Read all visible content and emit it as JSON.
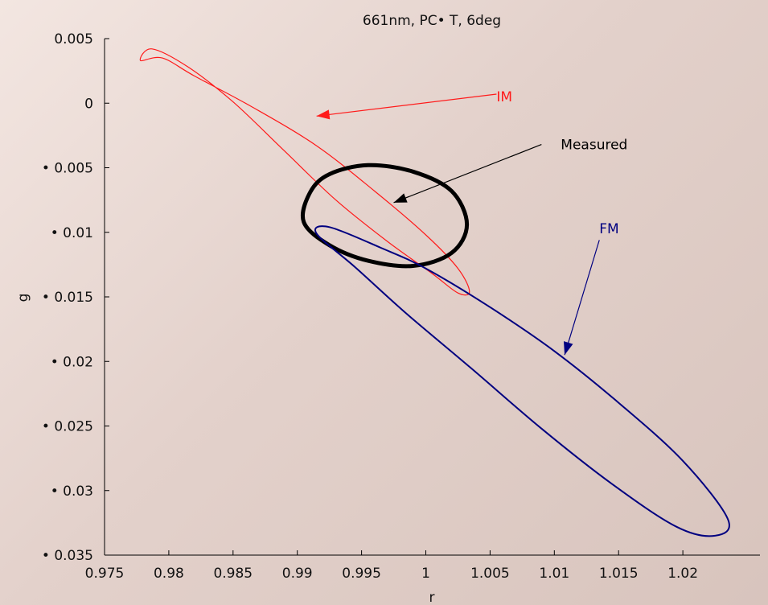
{
  "chart_data": {
    "type": "line",
    "title": "661nm, PC• T, 6deg",
    "xlabel": "r",
    "ylabel": "g",
    "xlim": [
      0.975,
      1.026
    ],
    "ylim": [
      -0.035,
      0.005
    ],
    "grid": false,
    "x_ticks": [
      0.975,
      0.98,
      0.985,
      0.99,
      0.995,
      1,
      1.005,
      1.01,
      1.015,
      1.02
    ],
    "x_tick_labels": [
      "0.975",
      "0.98",
      "0.985",
      "0.99",
      "0.995",
      "1",
      "1.005",
      "1.01",
      "1.015",
      "1.02"
    ],
    "y_ticks": [
      0.005,
      0,
      -0.005,
      -0.01,
      -0.015,
      -0.02,
      -0.025,
      -0.03,
      -0.035
    ],
    "y_tick_labels": [
      "0.005",
      "0",
      "• 0.005",
      "• 0.01",
      "• 0.015",
      "• 0.02",
      "• 0.025",
      "• 0.03",
      "• 0.035"
    ],
    "series": [
      {
        "name": "IM",
        "color": "#ff1a1a",
        "stroke": "thin",
        "points": [
          [
            0.9787,
            0.0042
          ],
          [
            0.9815,
            0.0028
          ],
          [
            0.985,
            0.0001
          ],
          [
            0.989,
            -0.0037
          ],
          [
            0.993,
            -0.0075
          ],
          [
            0.997,
            -0.0107
          ],
          [
            1.0005,
            -0.0132
          ],
          [
            1.0025,
            -0.0147
          ],
          [
            1.0034,
            -0.0146
          ],
          [
            1.0025,
            -0.0128
          ],
          [
            1.0,
            -0.0102
          ],
          [
            0.996,
            -0.0068
          ],
          [
            0.9915,
            -0.0033
          ],
          [
            0.9865,
            -0.0003
          ],
          [
            0.982,
            0.0021
          ],
          [
            0.9795,
            0.0035
          ],
          [
            0.9778,
            0.0033
          ],
          [
            0.9787,
            0.0042
          ]
        ]
      },
      {
        "name": "Measured",
        "color": "#000000",
        "stroke": "thick",
        "points": [
          [
            0.991,
            -0.0069
          ],
          [
            0.9925,
            -0.0055
          ],
          [
            0.9955,
            -0.0048
          ],
          [
            0.999,
            -0.0053
          ],
          [
            1.002,
            -0.0068
          ],
          [
            1.0032,
            -0.0094
          ],
          [
            1.002,
            -0.0116
          ],
          [
            0.999,
            -0.0126
          ],
          [
            0.9955,
            -0.0122
          ],
          [
            0.9925,
            -0.011
          ],
          [
            0.9905,
            -0.0092
          ],
          [
            0.991,
            -0.0069
          ]
        ]
      },
      {
        "name": "FM",
        "color": "#000080",
        "stroke": "medium",
        "points": [
          [
            0.9925,
            -0.0096
          ],
          [
            0.9965,
            -0.0112
          ],
          [
            1.0,
            -0.0128
          ],
          [
            1.005,
            -0.0158
          ],
          [
            1.01,
            -0.0192
          ],
          [
            1.015,
            -0.0232
          ],
          [
            1.02,
            -0.0277
          ],
          [
            1.0235,
            -0.0322
          ],
          [
            1.0225,
            -0.0335
          ],
          [
            1.0195,
            -0.0328
          ],
          [
            1.0145,
            -0.0295
          ],
          [
            1.009,
            -0.0252
          ],
          [
            1.0035,
            -0.0205
          ],
          [
            0.9985,
            -0.0163
          ],
          [
            0.9945,
            -0.0127
          ],
          [
            0.9915,
            -0.0101
          ],
          [
            0.9925,
            -0.0096
          ]
        ]
      }
    ],
    "annotations": [
      {
        "text": "IM",
        "color": "#ff1a1a",
        "label_at": [
          1.0055,
          0.0005
        ],
        "arrow_from": [
          1.0055,
          0.0007
        ],
        "arrow_to": [
          0.9915,
          -0.001
        ]
      },
      {
        "text": "Measured",
        "color": "#000000",
        "label_at": [
          1.0105,
          -0.0032
        ],
        "arrow_from": [
          1.009,
          -0.0032
        ],
        "arrow_to": [
          0.9975,
          -0.0077
        ]
      },
      {
        "text": "FM",
        "color": "#000080",
        "label_at": [
          1.0135,
          -0.0097
        ],
        "arrow_from": [
          1.0135,
          -0.0106
        ],
        "arrow_to": [
          1.0108,
          -0.0195
        ]
      }
    ]
  }
}
